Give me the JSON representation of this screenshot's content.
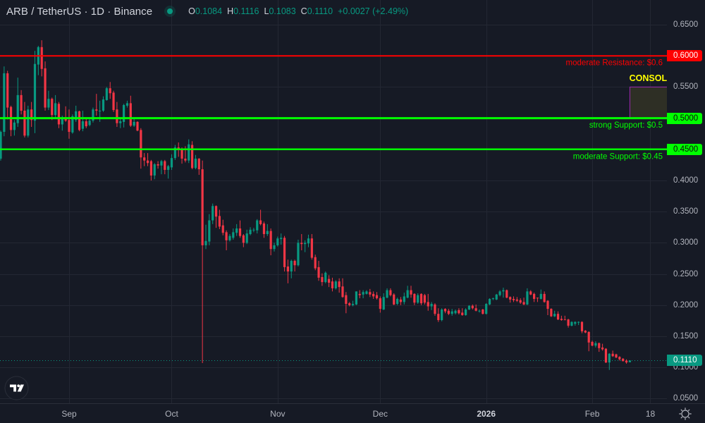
{
  "header": {
    "symbol_title": "ARB / TetherUS · 1D · Binance",
    "market_status_icon": "green-dot-icon",
    "ohlc": {
      "open_label": "O",
      "open": "0.1084",
      "high_label": "H",
      "high": "0.1116",
      "low_label": "L",
      "low": "0.1083",
      "close_label": "C",
      "close": "0.1110",
      "change": "+0.0027 (+2.49%)"
    }
  },
  "colors": {
    "background": "#161a25",
    "grid": "#232733",
    "up": "#089981",
    "down": "#f23645",
    "axis_text": "#b2b5be",
    "resistance": "#ff0000",
    "support": "#00ff00",
    "consol_label": "#ffff00",
    "consol_border": "#9c27b0",
    "consol_fill": "#2e2f25"
  },
  "price_axis": {
    "badges": [
      {
        "text": "0.6000",
        "price": 0.6,
        "bg": "#ff0000",
        "fg": "#ffffff"
      },
      {
        "text": "0.5000",
        "price": 0.5,
        "bg": "#00ff00",
        "fg": "#0b0b0b"
      },
      {
        "text": "0.4500",
        "price": 0.45,
        "bg": "#00ff00",
        "fg": "#0b0b0b"
      },
      {
        "text": "0.1110",
        "price": 0.111,
        "bg": "#089981",
        "fg": "#ffffff"
      }
    ]
  },
  "controls": {
    "settings_icon": "sun-settings-icon",
    "logo": "tradingview-logo-icon"
  },
  "chart_data": {
    "type": "candlestick",
    "title": "ARB / TetherUS · 1D · Binance",
    "xlabel": "",
    "ylabel": "",
    "ylim": [
      0.04,
      0.69
    ],
    "grid": true,
    "current_price": {
      "value": "0.1110",
      "price": 0.111
    },
    "y_ticks": [
      {
        "text": "0.6500",
        "price": 0.65
      },
      {
        "text": "0.6000",
        "price": 0.6
      },
      {
        "text": "0.5500",
        "price": 0.55
      },
      {
        "text": "0.5000",
        "price": 0.5
      },
      {
        "text": "0.4500",
        "price": 0.45
      },
      {
        "text": "0.4000",
        "price": 0.4
      },
      {
        "text": "0.3500",
        "price": 0.35
      },
      {
        "text": "0.3000",
        "price": 0.3
      },
      {
        "text": "0.2500",
        "price": 0.25
      },
      {
        "text": "0.2000",
        "price": 0.2
      },
      {
        "text": "0.1500",
        "price": 0.15
      },
      {
        "text": "0.1000",
        "price": 0.1
      },
      {
        "text": "0.0500",
        "price": 0.05
      }
    ],
    "x_ticks": [
      {
        "text": "Sep",
        "index": 20
      },
      {
        "text": "Oct",
        "index": 50
      },
      {
        "text": "Nov",
        "index": 81
      },
      {
        "text": "Dec",
        "index": 111
      },
      {
        "text": "2026",
        "index": 142,
        "bold": true
      },
      {
        "text": "Feb",
        "index": 173
      },
      {
        "text": "18",
        "index": 190
      }
    ],
    "hlines": [
      {
        "label": "moderate Resistance: $0.6",
        "price": 0.6,
        "color": "#ff0000",
        "width": 2
      },
      {
        "label": "strong Support: $0.5",
        "price": 0.5,
        "color": "#00ff00",
        "width": 3
      },
      {
        "label": "moderate Support: $0.45",
        "price": 0.45,
        "color": "#00ff00",
        "width": 2.5
      }
    ],
    "zones": [
      {
        "label": "CONSOL",
        "top": 0.55,
        "bottom": 0.5,
        "start_index": 184,
        "label_color": "#ffff00",
        "border": "#9c27b0",
        "fill": "#2e2f25"
      }
    ],
    "candle_fields": [
      "open",
      "high",
      "low",
      "close"
    ],
    "candles": [
      [
        0.435,
        0.48,
        0.432,
        0.478
      ],
      [
        0.478,
        0.583,
        0.471,
        0.572
      ],
      [
        0.572,
        0.576,
        0.498,
        0.517
      ],
      [
        0.518,
        0.52,
        0.471,
        0.481
      ],
      [
        0.481,
        0.497,
        0.472,
        0.493
      ],
      [
        0.492,
        0.565,
        0.486,
        0.537
      ],
      [
        0.537,
        0.545,
        0.506,
        0.512
      ],
      [
        0.512,
        0.526,
        0.469,
        0.472
      ],
      [
        0.472,
        0.52,
        0.469,
        0.514
      ],
      [
        0.514,
        0.526,
        0.486,
        0.497
      ],
      [
        0.496,
        0.608,
        0.476,
        0.587
      ],
      [
        0.586,
        0.616,
        0.569,
        0.614
      ],
      [
        0.614,
        0.625,
        0.567,
        0.579
      ],
      [
        0.58,
        0.591,
        0.512,
        0.517
      ],
      [
        0.517,
        0.544,
        0.513,
        0.531
      ],
      [
        0.531,
        0.533,
        0.497,
        0.505
      ],
      [
        0.505,
        0.537,
        0.501,
        0.524
      ],
      [
        0.523,
        0.526,
        0.484,
        0.49
      ],
      [
        0.49,
        0.504,
        0.48,
        0.5
      ],
      [
        0.5,
        0.519,
        0.494,
        0.496
      ],
      [
        0.497,
        0.514,
        0.467,
        0.478
      ],
      [
        0.477,
        0.506,
        0.475,
        0.503
      ],
      [
        0.497,
        0.52,
        0.494,
        0.511
      ],
      [
        0.511,
        0.512,
        0.479,
        0.481
      ],
      [
        0.483,
        0.512,
        0.479,
        0.495
      ],
      [
        0.495,
        0.501,
        0.484,
        0.487
      ],
      [
        0.489,
        0.5,
        0.487,
        0.496
      ],
      [
        0.496,
        0.517,
        0.493,
        0.514
      ],
      [
        0.514,
        0.539,
        0.504,
        0.512
      ],
      [
        0.511,
        0.528,
        0.494,
        0.512
      ],
      [
        0.512,
        0.535,
        0.51,
        0.53
      ],
      [
        0.529,
        0.55,
        0.528,
        0.548
      ],
      [
        0.548,
        0.558,
        0.531,
        0.54
      ],
      [
        0.541,
        0.544,
        0.51,
        0.513
      ],
      [
        0.514,
        0.526,
        0.486,
        0.492
      ],
      [
        0.492,
        0.5,
        0.484,
        0.495
      ],
      [
        0.494,
        0.523,
        0.485,
        0.521
      ],
      [
        0.52,
        0.528,
        0.517,
        0.524
      ],
      [
        0.524,
        0.536,
        0.486,
        0.488
      ],
      [
        0.488,
        0.5,
        0.486,
        0.494
      ],
      [
        0.494,
        0.495,
        0.479,
        0.48
      ],
      [
        0.481,
        0.484,
        0.419,
        0.437
      ],
      [
        0.437,
        0.444,
        0.423,
        0.432
      ],
      [
        0.432,
        0.444,
        0.423,
        0.428
      ],
      [
        0.431,
        0.433,
        0.4,
        0.408
      ],
      [
        0.408,
        0.428,
        0.402,
        0.426
      ],
      [
        0.426,
        0.431,
        0.419,
        0.424
      ],
      [
        0.424,
        0.433,
        0.41,
        0.431
      ],
      [
        0.431,
        0.433,
        0.41,
        0.417
      ],
      [
        0.417,
        0.425,
        0.403,
        0.423
      ],
      [
        0.421,
        0.442,
        0.417,
        0.436
      ],
      [
        0.436,
        0.457,
        0.433,
        0.453
      ],
      [
        0.453,
        0.461,
        0.438,
        0.45
      ],
      [
        0.451,
        0.453,
        0.427,
        0.435
      ],
      [
        0.435,
        0.455,
        0.429,
        0.432
      ],
      [
        0.432,
        0.466,
        0.428,
        0.458
      ],
      [
        0.457,
        0.463,
        0.418,
        0.42
      ],
      [
        0.42,
        0.441,
        0.418,
        0.435
      ],
      [
        0.435,
        0.436,
        0.409,
        0.418
      ],
      [
        0.418,
        0.432,
        0.107,
        0.296
      ],
      [
        0.296,
        0.329,
        0.29,
        0.303
      ],
      [
        0.302,
        0.346,
        0.296,
        0.336
      ],
      [
        0.336,
        0.363,
        0.33,
        0.359
      ],
      [
        0.359,
        0.36,
        0.324,
        0.342
      ],
      [
        0.343,
        0.353,
        0.322,
        0.326
      ],
      [
        0.328,
        0.337,
        0.312,
        0.316
      ],
      [
        0.317,
        0.32,
        0.288,
        0.304
      ],
      [
        0.304,
        0.314,
        0.302,
        0.311
      ],
      [
        0.308,
        0.323,
        0.305,
        0.317
      ],
      [
        0.316,
        0.33,
        0.311,
        0.323
      ],
      [
        0.323,
        0.336,
        0.308,
        0.311
      ],
      [
        0.312,
        0.314,
        0.293,
        0.3
      ],
      [
        0.3,
        0.321,
        0.298,
        0.315
      ],
      [
        0.314,
        0.325,
        0.312,
        0.321
      ],
      [
        0.32,
        0.324,
        0.317,
        0.321
      ],
      [
        0.32,
        0.338,
        0.315,
        0.336
      ],
      [
        0.336,
        0.353,
        0.328,
        0.33
      ],
      [
        0.331,
        0.334,
        0.308,
        0.314
      ],
      [
        0.314,
        0.33,
        0.311,
        0.319
      ],
      [
        0.319,
        0.323,
        0.28,
        0.29
      ],
      [
        0.29,
        0.3,
        0.286,
        0.296
      ],
      [
        0.296,
        0.31,
        0.294,
        0.307
      ],
      [
        0.306,
        0.315,
        0.297,
        0.308
      ],
      [
        0.308,
        0.311,
        0.254,
        0.261
      ],
      [
        0.262,
        0.273,
        0.235,
        0.254
      ],
      [
        0.254,
        0.273,
        0.243,
        0.271
      ],
      [
        0.271,
        0.273,
        0.254,
        0.264
      ],
      [
        0.264,
        0.305,
        0.262,
        0.3
      ],
      [
        0.3,
        0.314,
        0.288,
        0.298
      ],
      [
        0.298,
        0.304,
        0.285,
        0.3
      ],
      [
        0.299,
        0.313,
        0.293,
        0.307
      ],
      [
        0.307,
        0.314,
        0.273,
        0.276
      ],
      [
        0.277,
        0.281,
        0.256,
        0.259
      ],
      [
        0.261,
        0.271,
        0.239,
        0.244
      ],
      [
        0.245,
        0.251,
        0.231,
        0.237
      ],
      [
        0.237,
        0.254,
        0.235,
        0.252
      ],
      [
        0.242,
        0.248,
        0.229,
        0.236
      ],
      [
        0.238,
        0.244,
        0.222,
        0.227
      ],
      [
        0.227,
        0.24,
        0.225,
        0.238
      ],
      [
        0.238,
        0.243,
        0.22,
        0.229
      ],
      [
        0.23,
        0.243,
        0.212,
        0.213
      ],
      [
        0.216,
        0.221,
        0.187,
        0.202
      ],
      [
        0.203,
        0.205,
        0.198,
        0.2
      ],
      [
        0.2,
        0.207,
        0.198,
        0.202
      ],
      [
        0.201,
        0.222,
        0.2,
        0.222
      ],
      [
        0.218,
        0.224,
        0.211,
        0.216
      ],
      [
        0.217,
        0.224,
        0.211,
        0.221
      ],
      [
        0.218,
        0.224,
        0.217,
        0.222
      ],
      [
        0.221,
        0.226,
        0.213,
        0.217
      ],
      [
        0.218,
        0.222,
        0.21,
        0.214
      ],
      [
        0.216,
        0.221,
        0.209,
        0.211
      ],
      [
        0.211,
        0.214,
        0.188,
        0.194
      ],
      [
        0.193,
        0.219,
        0.192,
        0.213
      ],
      [
        0.212,
        0.227,
        0.211,
        0.224
      ],
      [
        0.224,
        0.227,
        0.214,
        0.216
      ],
      [
        0.217,
        0.219,
        0.2,
        0.201
      ],
      [
        0.202,
        0.212,
        0.2,
        0.21
      ],
      [
        0.209,
        0.213,
        0.2,
        0.205
      ],
      [
        0.205,
        0.22,
        0.201,
        0.214
      ],
      [
        0.212,
        0.231,
        0.211,
        0.224
      ],
      [
        0.224,
        0.231,
        0.212,
        0.217
      ],
      [
        0.218,
        0.219,
        0.2,
        0.204
      ],
      [
        0.204,
        0.219,
        0.202,
        0.216
      ],
      [
        0.218,
        0.219,
        0.2,
        0.203
      ],
      [
        0.216,
        0.218,
        0.201,
        0.204
      ],
      [
        0.205,
        0.218,
        0.191,
        0.198
      ],
      [
        0.198,
        0.205,
        0.192,
        0.202
      ],
      [
        0.201,
        0.203,
        0.183,
        0.186
      ],
      [
        0.186,
        0.195,
        0.173,
        0.176
      ],
      [
        0.176,
        0.195,
        0.174,
        0.193
      ],
      [
        0.194,
        0.195,
        0.187,
        0.19
      ],
      [
        0.191,
        0.194,
        0.184,
        0.186
      ],
      [
        0.186,
        0.194,
        0.183,
        0.19
      ],
      [
        0.187,
        0.193,
        0.185,
        0.191
      ],
      [
        0.192,
        0.195,
        0.185,
        0.187
      ],
      [
        0.188,
        0.195,
        0.183,
        0.184
      ],
      [
        0.184,
        0.195,
        0.183,
        0.193
      ],
      [
        0.193,
        0.2,
        0.192,
        0.199
      ],
      [
        0.199,
        0.201,
        0.193,
        0.195
      ],
      [
        0.195,
        0.201,
        0.19,
        0.191
      ],
      [
        0.19,
        0.193,
        0.188,
        0.191
      ],
      [
        0.193,
        0.194,
        0.185,
        0.186
      ],
      [
        0.186,
        0.203,
        0.185,
        0.202
      ],
      [
        0.201,
        0.211,
        0.2,
        0.21
      ],
      [
        0.21,
        0.212,
        0.208,
        0.211
      ],
      [
        0.209,
        0.218,
        0.208,
        0.217
      ],
      [
        0.216,
        0.224,
        0.214,
        0.222
      ],
      [
        0.222,
        0.228,
        0.212,
        0.224
      ],
      [
        0.224,
        0.225,
        0.211,
        0.212
      ],
      [
        0.213,
        0.214,
        0.204,
        0.209
      ],
      [
        0.21,
        0.214,
        0.205,
        0.208
      ],
      [
        0.209,
        0.213,
        0.205,
        0.207
      ],
      [
        0.208,
        0.211,
        0.202,
        0.204
      ],
      [
        0.205,
        0.212,
        0.2,
        0.201
      ],
      [
        0.201,
        0.227,
        0.2,
        0.222
      ],
      [
        0.222,
        0.224,
        0.216,
        0.217
      ],
      [
        0.218,
        0.22,
        0.205,
        0.21
      ],
      [
        0.212,
        0.212,
        0.205,
        0.211
      ],
      [
        0.21,
        0.225,
        0.209,
        0.218
      ],
      [
        0.218,
        0.222,
        0.204,
        0.205
      ],
      [
        0.207,
        0.208,
        0.184,
        0.194
      ],
      [
        0.194,
        0.195,
        0.181,
        0.182
      ],
      [
        0.182,
        0.191,
        0.181,
        0.186
      ],
      [
        0.186,
        0.19,
        0.176,
        0.177
      ],
      [
        0.178,
        0.183,
        0.175,
        0.176
      ],
      [
        0.177,
        0.183,
        0.176,
        0.1765
      ],
      [
        0.177,
        0.178,
        0.164,
        0.167
      ],
      [
        0.167,
        0.174,
        0.166,
        0.173
      ],
      [
        0.17,
        0.174,
        0.167,
        0.173
      ],
      [
        0.172,
        0.174,
        0.168,
        0.173
      ],
      [
        0.173,
        0.174,
        0.155,
        0.158
      ],
      [
        0.159,
        0.16,
        0.155,
        0.156
      ],
      [
        0.157,
        0.158,
        0.126,
        0.14
      ],
      [
        0.141,
        0.143,
        0.134,
        0.135
      ],
      [
        0.135,
        0.142,
        0.132,
        0.139
      ],
      [
        0.139,
        0.14,
        0.125,
        0.131
      ],
      [
        0.132,
        0.138,
        0.127,
        0.129
      ],
      [
        0.13,
        0.131,
        0.107,
        0.108
      ],
      [
        0.108,
        0.123,
        0.096,
        0.122
      ],
      [
        0.122,
        0.127,
        0.117,
        0.118
      ],
      [
        0.121,
        0.122,
        0.115,
        0.116
      ],
      [
        0.117,
        0.118,
        0.111,
        0.113
      ],
      [
        0.114,
        0.115,
        0.11,
        0.11
      ],
      [
        0.111,
        0.113,
        0.106,
        0.108
      ],
      [
        0.1084,
        0.1116,
        0.1083,
        0.111
      ]
    ]
  }
}
